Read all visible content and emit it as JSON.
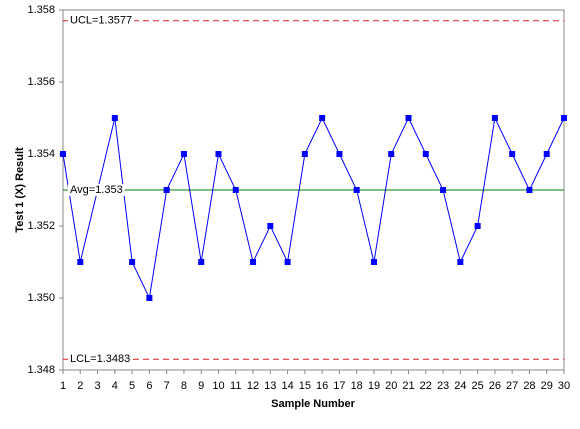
{
  "chart_data": {
    "type": "line",
    "ylabel": "Test 1 (X) Result",
    "xlabel": "Sample Number",
    "x": [
      1,
      2,
      3,
      4,
      5,
      6,
      7,
      8,
      9,
      10,
      11,
      12,
      13,
      14,
      15,
      16,
      17,
      18,
      19,
      20,
      21,
      22,
      23,
      24,
      25,
      26,
      27,
      28,
      29,
      30
    ],
    "series": [
      {
        "color": "#0000ff",
        "values": [
          1.354,
          1.351,
          1.353,
          1.355,
          1.351,
          1.35,
          1.353,
          1.354,
          1.351,
          1.354,
          1.353,
          1.351,
          1.352,
          1.351,
          1.354,
          1.355,
          1.354,
          1.353,
          1.351,
          1.354,
          1.355,
          1.354,
          1.353,
          1.351,
          1.352,
          1.355,
          1.354,
          1.353,
          1.354,
          1.355
        ]
      }
    ],
    "ref_lines": [
      {
        "label": "UCL=1.3577",
        "value": 1.3577,
        "color": "#e02020",
        "style": "dashed"
      },
      {
        "label": "Avg=1.353",
        "value": 1.353,
        "color": "#008000",
        "style": "solid"
      },
      {
        "label": "LCL=1.3483",
        "value": 1.3483,
        "color": "#e02020",
        "style": "dashed"
      }
    ],
    "xlim": [
      1,
      30
    ],
    "xticks": [
      1,
      2,
      3,
      4,
      5,
      6,
      7,
      8,
      9,
      10,
      11,
      12,
      13,
      14,
      15,
      16,
      17,
      18,
      19,
      20,
      21,
      22,
      23,
      24,
      25,
      26,
      27,
      28,
      29,
      30
    ],
    "ylim": [
      1.348,
      1.358
    ],
    "yticks": [
      1.348,
      {
        "value": 1.35,
        "label": "1.350"
      },
      1.352,
      1.354,
      1.356,
      1.358
    ]
  }
}
